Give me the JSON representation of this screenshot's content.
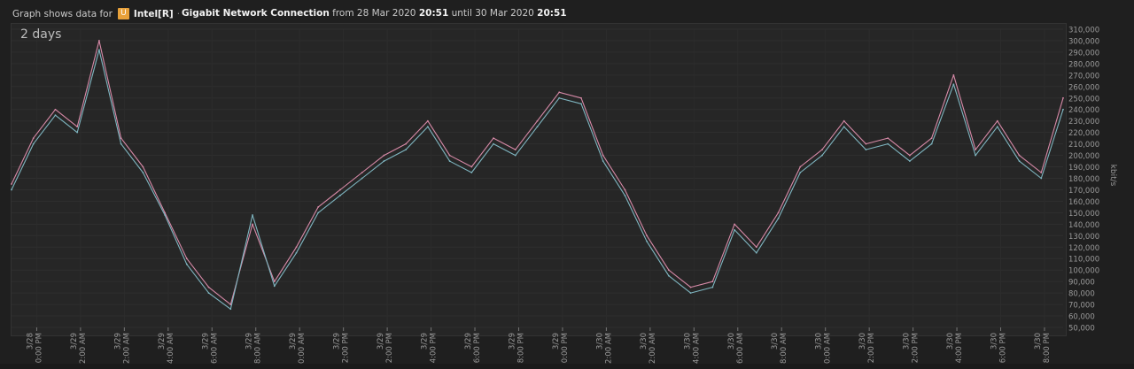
{
  "header": {
    "prefix": "Graph shows data for",
    "badge_letter": "U",
    "adapter_short": "Intel[R]",
    "separator": "·",
    "connection_name": "Gigabit Network Connection",
    "from_word": "from",
    "from_date": "28 Mar 2020",
    "from_time": "20:51",
    "until_word": "until",
    "until_date": "30 Mar 2020",
    "until_time": "20:51"
  },
  "range_label": "2 days",
  "colors": {
    "background": "#1f1f1f",
    "plot_bg": "#262626",
    "grid": "#333333",
    "series_pink": "#d88aa8",
    "series_teal": "#7fb6c1",
    "badge": "#e8a13a"
  },
  "chart_data": {
    "type": "line",
    "ylabel": "kbit/s",
    "ylim": [
      50000,
      310000
    ],
    "yticks": [
      50000,
      60000,
      70000,
      80000,
      90000,
      100000,
      110000,
      120000,
      130000,
      140000,
      150000,
      160000,
      170000,
      180000,
      190000,
      200000,
      210000,
      220000,
      230000,
      240000,
      250000,
      260000,
      270000,
      280000,
      290000,
      300000,
      310000
    ],
    "ytick_labels": [
      "50,000",
      "60,000",
      "70,000",
      "80,000",
      "90,000",
      "100,000",
      "110,000",
      "120,000",
      "130,000",
      "140,000",
      "150,000",
      "160,000",
      "170,000",
      "180,000",
      "190,000",
      "200,000",
      "210,000",
      "220,000",
      "230,000",
      "240,000",
      "250,000",
      "260,000",
      "270,000",
      "280,000",
      "290,000",
      "300,000",
      "310,000"
    ],
    "x_ticks": [
      {
        "date": "3/28",
        "time": "10:00 PM"
      },
      {
        "date": "3/29",
        "time": "12:00 AM"
      },
      {
        "date": "3/29",
        "time": "2:00 AM"
      },
      {
        "date": "3/29",
        "time": "4:00 AM"
      },
      {
        "date": "3/29",
        "time": "6:00 AM"
      },
      {
        "date": "3/29",
        "time": "8:00 AM"
      },
      {
        "date": "3/29",
        "time": "10:00 AM"
      },
      {
        "date": "3/29",
        "time": "12:00 PM"
      },
      {
        "date": "3/29",
        "time": "2:00 PM"
      },
      {
        "date": "3/29",
        "time": "4:00 PM"
      },
      {
        "date": "3/29",
        "time": "6:00 PM"
      },
      {
        "date": "3/29",
        "time": "8:00 PM"
      },
      {
        "date": "3/29",
        "time": "10:00 PM"
      },
      {
        "date": "3/30",
        "time": "12:00 AM"
      },
      {
        "date": "3/30",
        "time": "2:00 AM"
      },
      {
        "date": "3/30",
        "time": "4:00 AM"
      },
      {
        "date": "3/30",
        "time": "6:00 AM"
      },
      {
        "date": "3/30",
        "time": "8:00 AM"
      },
      {
        "date": "3/30",
        "time": "10:00 AM"
      },
      {
        "date": "3/30",
        "time": "12:00 PM"
      },
      {
        "date": "3/30",
        "time": "2:00 PM"
      },
      {
        "date": "3/30",
        "time": "4:00 PM"
      },
      {
        "date": "3/30",
        "time": "6:00 PM"
      },
      {
        "date": "3/30",
        "time": "8:00 PM"
      }
    ],
    "series": [
      {
        "color": "#d88aa8",
        "x": [
          "3/28 8:51 PM",
          "3/28 9:51 PM",
          "3/28 10:51 PM",
          "3/28 11:51 PM",
          "3/29 12:51 AM",
          "3/29 1:51 AM",
          "3/29 2:51 AM",
          "3/29 3:51 AM",
          "3/29 4:51 AM",
          "3/29 5:51 AM",
          "3/29 6:51 AM",
          "3/29 7:51 AM",
          "3/29 8:51 AM",
          "3/29 9:51 AM",
          "3/29 10:51 AM",
          "3/29 11:51 AM",
          "3/29 12:51 PM",
          "3/29 1:51 PM",
          "3/29 2:51 PM",
          "3/29 3:51 PM",
          "3/29 4:51 PM",
          "3/29 5:51 PM",
          "3/29 6:51 PM",
          "3/29 7:51 PM",
          "3/29 8:51 PM",
          "3/29 9:51 PM",
          "3/29 10:51 PM",
          "3/29 11:51 PM",
          "3/30 12:51 AM",
          "3/30 1:51 AM",
          "3/30 2:51 AM",
          "3/30 3:51 AM",
          "3/30 4:51 AM",
          "3/30 5:51 AM",
          "3/30 6:51 AM",
          "3/30 7:51 AM",
          "3/30 8:51 AM",
          "3/30 9:51 AM",
          "3/30 10:51 AM",
          "3/30 11:51 AM",
          "3/30 12:51 PM",
          "3/30 1:51 PM",
          "3/30 2:51 PM",
          "3/30 3:51 PM",
          "3/30 4:51 PM",
          "3/30 5:51 PM",
          "3/30 6:51 PM",
          "3/30 7:51 PM",
          "3/30 8:51 PM"
        ],
        "values": [
          175000,
          215000,
          240000,
          225000,
          300000,
          215000,
          190000,
          150000,
          110000,
          85000,
          70000,
          140000,
          90000,
          120000,
          155000,
          170000,
          185000,
          200000,
          210000,
          230000,
          200000,
          190000,
          215000,
          205000,
          230000,
          255000,
          250000,
          200000,
          170000,
          130000,
          100000,
          85000,
          90000,
          140000,
          120000,
          150000,
          190000,
          205000,
          230000,
          210000,
          215000,
          200000,
          215000,
          270000,
          205000,
          230000,
          200000,
          185000,
          250000
        ]
      },
      {
        "color": "#7fb6c1",
        "x": [
          "3/28 8:51 PM",
          "3/28 9:51 PM",
          "3/28 10:51 PM",
          "3/28 11:51 PM",
          "3/29 12:51 AM",
          "3/29 1:51 AM",
          "3/29 2:51 AM",
          "3/29 3:51 AM",
          "3/29 4:51 AM",
          "3/29 5:51 AM",
          "3/29 6:51 AM",
          "3/29 7:51 AM",
          "3/29 8:51 AM",
          "3/29 9:51 AM",
          "3/29 10:51 AM",
          "3/29 11:51 AM",
          "3/29 12:51 PM",
          "3/29 1:51 PM",
          "3/29 2:51 PM",
          "3/29 3:51 PM",
          "3/29 4:51 PM",
          "3/29 5:51 PM",
          "3/29 6:51 PM",
          "3/29 7:51 PM",
          "3/29 8:51 PM",
          "3/29 9:51 PM",
          "3/29 10:51 PM",
          "3/29 11:51 PM",
          "3/30 12:51 AM",
          "3/30 1:51 AM",
          "3/30 2:51 AM",
          "3/30 3:51 AM",
          "3/30 4:51 AM",
          "3/30 5:51 AM",
          "3/30 6:51 AM",
          "3/30 7:51 AM",
          "3/30 8:51 AM",
          "3/30 9:51 AM",
          "3/30 10:51 AM",
          "3/30 11:51 AM",
          "3/30 12:51 PM",
          "3/30 1:51 PM",
          "3/30 2:51 PM",
          "3/30 3:51 PM",
          "3/30 4:51 PM",
          "3/30 5:51 PM",
          "3/30 6:51 PM",
          "3/30 7:51 PM",
          "3/30 8:51 PM"
        ],
        "values": [
          170000,
          210000,
          235000,
          220000,
          292000,
          210000,
          185000,
          148000,
          105000,
          80000,
          66000,
          148000,
          86000,
          115000,
          150000,
          165000,
          180000,
          195000,
          205000,
          225000,
          195000,
          185000,
          210000,
          200000,
          225000,
          250000,
          245000,
          195000,
          165000,
          125000,
          95000,
          80000,
          85000,
          135000,
          115000,
          145000,
          185000,
          200000,
          225000,
          205000,
          210000,
          195000,
          210000,
          262000,
          200000,
          225000,
          195000,
          180000,
          240000
        ]
      }
    ]
  }
}
